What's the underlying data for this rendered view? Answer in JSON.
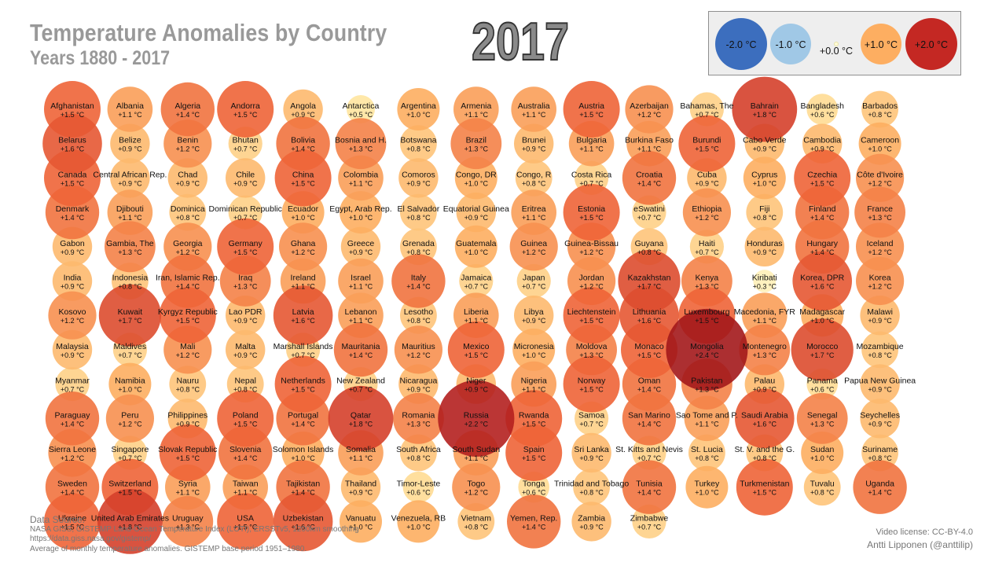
{
  "header": {
    "title": "Temperature Anomalies by Country",
    "subtitle": "Years 1880 - 2017",
    "year": "2017"
  },
  "legend": [
    {
      "label": "-2.0 °C",
      "value": -2.0
    },
    {
      "label": "-1.0 °C",
      "value": -1.0
    },
    {
      "label": "+0.0 °C",
      "value": 0.0
    },
    {
      "label": "+1.0 °C",
      "value": 1.0
    },
    {
      "label": "+2.0 °C",
      "value": 2.0
    }
  ],
  "footer": {
    "source_label": "Data Source:",
    "source_line1": "NASA GISS, GISTEMP Land-Ocean Temperature Index (LOTI), ERSSTv5, 1200km smoothing",
    "source_line2": "https://data.giss.nasa.gov/gistemp/",
    "source_line3": "Average of monthly temperature anomalies. GISTEMP base period 1951–1980.",
    "license": "Video license: CC-BY-4.0",
    "author": "Antti Lipponen (@anttilip)"
  },
  "chart_data": {
    "type": "bubble-grid",
    "unit": "°C",
    "columns": 15,
    "countries": [
      {
        "name": "Afghanistan",
        "value": 1.5
      },
      {
        "name": "Albania",
        "value": 1.1
      },
      {
        "name": "Algeria",
        "value": 1.4
      },
      {
        "name": "Andorra",
        "value": 1.5
      },
      {
        "name": "Angola",
        "value": 0.9
      },
      {
        "name": "Antarctica",
        "value": 0.5
      },
      {
        "name": "Argentina",
        "value": 1.0
      },
      {
        "name": "Armenia",
        "value": 1.1
      },
      {
        "name": "Australia",
        "value": 1.1
      },
      {
        "name": "Austria",
        "value": 1.5
      },
      {
        "name": "Azerbaijan",
        "value": 1.2
      },
      {
        "name": "Bahamas, The",
        "value": 0.7
      },
      {
        "name": "Bahrain",
        "value": 1.8
      },
      {
        "name": "Bangladesh",
        "value": 0.6
      },
      {
        "name": "Barbados",
        "value": 0.8
      },
      {
        "name": "Belarus",
        "value": 1.6
      },
      {
        "name": "Belize",
        "value": 0.9
      },
      {
        "name": "Benin",
        "value": 1.2
      },
      {
        "name": "Bhutan",
        "value": 0.7
      },
      {
        "name": "Bolivia",
        "value": 1.4
      },
      {
        "name": "Bosnia and H.",
        "value": 1.3
      },
      {
        "name": "Botswana",
        "value": 0.8
      },
      {
        "name": "Brazil",
        "value": 1.3
      },
      {
        "name": "Brunei",
        "value": 0.9
      },
      {
        "name": "Bulgaria",
        "value": 1.1
      },
      {
        "name": "Burkina Faso",
        "value": 1.1
      },
      {
        "name": "Burundi",
        "value": 1.5
      },
      {
        "name": "Cabo Verde",
        "value": 0.9
      },
      {
        "name": "Cambodia",
        "value": 0.9
      },
      {
        "name": "Cameroon",
        "value": 1.0
      },
      {
        "name": "Canada",
        "value": 1.5
      },
      {
        "name": "Central African Rep.",
        "value": 0.9
      },
      {
        "name": "Chad",
        "value": 0.9
      },
      {
        "name": "Chile",
        "value": 0.9
      },
      {
        "name": "China",
        "value": 1.5
      },
      {
        "name": "Colombia",
        "value": 1.1
      },
      {
        "name": "Comoros",
        "value": 0.9
      },
      {
        "name": "Congo, DR",
        "value": 1.0
      },
      {
        "name": "Congo, R",
        "value": 0.8
      },
      {
        "name": "Costa Rica",
        "value": 0.7
      },
      {
        "name": "Croatia",
        "value": 1.4
      },
      {
        "name": "Cuba",
        "value": 0.9
      },
      {
        "name": "Cyprus",
        "value": 1.0
      },
      {
        "name": "Czechia",
        "value": 1.5
      },
      {
        "name": "Côte d'Ivoire",
        "value": 1.2
      },
      {
        "name": "Denmark",
        "value": 1.4
      },
      {
        "name": "Djibouti",
        "value": 1.1
      },
      {
        "name": "Dominica",
        "value": 0.8
      },
      {
        "name": "Dominican Republic",
        "value": 0.7
      },
      {
        "name": "Ecuador",
        "value": 1.0
      },
      {
        "name": "Egypt, Arab Rep.",
        "value": 1.0
      },
      {
        "name": "El Salvador",
        "value": 0.8
      },
      {
        "name": "Equatorial Guinea",
        "value": 0.9
      },
      {
        "name": "Eritrea",
        "value": 1.1
      },
      {
        "name": "Estonia",
        "value": 1.5
      },
      {
        "name": "eSwatini",
        "value": 0.7
      },
      {
        "name": "Ethiopia",
        "value": 1.2
      },
      {
        "name": "Fiji",
        "value": 0.8
      },
      {
        "name": "Finland",
        "value": 1.4
      },
      {
        "name": "France",
        "value": 1.3
      },
      {
        "name": "Gabon",
        "value": 0.9
      },
      {
        "name": "Gambia, The",
        "value": 1.3
      },
      {
        "name": "Georgia",
        "value": 1.2
      },
      {
        "name": "Germany",
        "value": 1.5
      },
      {
        "name": "Ghana",
        "value": 1.2
      },
      {
        "name": "Greece",
        "value": 0.9
      },
      {
        "name": "Grenada",
        "value": 0.8
      },
      {
        "name": "Guatemala",
        "value": 1.0
      },
      {
        "name": "Guinea",
        "value": 1.2
      },
      {
        "name": "Guinea-Bissau",
        "value": 1.2
      },
      {
        "name": "Guyana",
        "value": 0.8
      },
      {
        "name": "Haiti",
        "value": 0.7
      },
      {
        "name": "Honduras",
        "value": 0.9
      },
      {
        "name": "Hungary",
        "value": 1.4
      },
      {
        "name": "Iceland",
        "value": 1.2
      },
      {
        "name": "India",
        "value": 0.9
      },
      {
        "name": "Indonesia",
        "value": 0.8
      },
      {
        "name": "Iran, Islamic Rep.",
        "value": 1.4
      },
      {
        "name": "Iraq",
        "value": 1.3
      },
      {
        "name": "Ireland",
        "value": 1.1
      },
      {
        "name": "Israel",
        "value": 1.1
      },
      {
        "name": "Italy",
        "value": 1.4
      },
      {
        "name": "Jamaica",
        "value": 0.7
      },
      {
        "name": "Japan",
        "value": 0.7
      },
      {
        "name": "Jordan",
        "value": 1.2
      },
      {
        "name": "Kazakhstan",
        "value": 1.7
      },
      {
        "name": "Kenya",
        "value": 1.3
      },
      {
        "name": "Kiribati",
        "value": 0.3
      },
      {
        "name": "Korea, DPR",
        "value": 1.6
      },
      {
        "name": "Korea",
        "value": 1.2
      },
      {
        "name": "Kosovo",
        "value": 1.2
      },
      {
        "name": "Kuwait",
        "value": 1.7
      },
      {
        "name": "Kyrgyz Republic",
        "value": 1.5
      },
      {
        "name": "Lao PDR",
        "value": 0.9
      },
      {
        "name": "Latvia",
        "value": 1.6
      },
      {
        "name": "Lebanon",
        "value": 1.1
      },
      {
        "name": "Lesotho",
        "value": 0.8
      },
      {
        "name": "Liberia",
        "value": 1.1
      },
      {
        "name": "Libya",
        "value": 0.9
      },
      {
        "name": "Liechtenstein",
        "value": 1.5
      },
      {
        "name": "Lithuania",
        "value": 1.6
      },
      {
        "name": "Luxembourg",
        "value": 1.5
      },
      {
        "name": "Macedonia, FYR",
        "value": 1.1
      },
      {
        "name": "Madagascar",
        "value": 1.0
      },
      {
        "name": "Malawi",
        "value": 0.9
      },
      {
        "name": "Malaysia",
        "value": 0.9
      },
      {
        "name": "Maldives",
        "value": 0.7
      },
      {
        "name": "Mali",
        "value": 1.2
      },
      {
        "name": "Malta",
        "value": 0.9
      },
      {
        "name": "Marshall Islands",
        "value": 0.7
      },
      {
        "name": "Mauritania",
        "value": 1.4
      },
      {
        "name": "Mauritius",
        "value": 1.2
      },
      {
        "name": "Mexico",
        "value": 1.5
      },
      {
        "name": "Micronesia",
        "value": 1.0
      },
      {
        "name": "Moldova",
        "value": 1.3
      },
      {
        "name": "Monaco",
        "value": 1.5
      },
      {
        "name": "Mongolia",
        "value": 2.4
      },
      {
        "name": "Montenegro",
        "value": 1.3
      },
      {
        "name": "Morocco",
        "value": 1.7
      },
      {
        "name": "Mozambique",
        "value": 0.8
      },
      {
        "name": "Myanmar",
        "value": 0.7
      },
      {
        "name": "Namibia",
        "value": 1.0
      },
      {
        "name": "Nauru",
        "value": 0.8
      },
      {
        "name": "Nepal",
        "value": 0.8
      },
      {
        "name": "Netherlands",
        "value": 1.5
      },
      {
        "name": "New Zealand",
        "value": 0.7
      },
      {
        "name": "Nicaragua",
        "value": 0.9
      },
      {
        "name": "Niger",
        "value": 0.9
      },
      {
        "name": "Nigeria",
        "value": 1.1
      },
      {
        "name": "Norway",
        "value": 1.5
      },
      {
        "name": "Oman",
        "value": 1.4
      },
      {
        "name": "Pakistan",
        "value": 1.3
      },
      {
        "name": "Palau",
        "value": 0.9
      },
      {
        "name": "Panama",
        "value": 0.6
      },
      {
        "name": "Papua New Guinea",
        "value": 0.9
      },
      {
        "name": "Paraguay",
        "value": 1.4
      },
      {
        "name": "Peru",
        "value": 1.2
      },
      {
        "name": "Philippines",
        "value": 0.9
      },
      {
        "name": "Poland",
        "value": 1.5
      },
      {
        "name": "Portugal",
        "value": 1.4
      },
      {
        "name": "Qatar",
        "value": 1.8
      },
      {
        "name": "Romania",
        "value": 1.3
      },
      {
        "name": "Russia",
        "value": 2.2
      },
      {
        "name": "Rwanda",
        "value": 1.5
      },
      {
        "name": "Samoa",
        "value": 0.7
      },
      {
        "name": "San Marino",
        "value": 1.4
      },
      {
        "name": "Sao Tome and P.",
        "value": 1.1
      },
      {
        "name": "Saudi Arabia",
        "value": 1.6
      },
      {
        "name": "Senegal",
        "value": 1.3
      },
      {
        "name": "Seychelles",
        "value": 0.9
      },
      {
        "name": "Sierra Leone",
        "value": 1.2
      },
      {
        "name": "Singapore",
        "value": 0.7
      },
      {
        "name": "Slovak Republic",
        "value": 1.5
      },
      {
        "name": "Slovenia",
        "value": 1.4
      },
      {
        "name": "Solomon Islands",
        "value": 1.0
      },
      {
        "name": "Somalia",
        "value": 1.1
      },
      {
        "name": "South Africa",
        "value": 0.8
      },
      {
        "name": "South Sudan",
        "value": 1.1
      },
      {
        "name": "Spain",
        "value": 1.5
      },
      {
        "name": "Sri Lanka",
        "value": 0.9
      },
      {
        "name": "St. Kitts and Nevis",
        "value": 0.7
      },
      {
        "name": "St. Lucia",
        "value": 0.8
      },
      {
        "name": "St. V. and the G.",
        "value": 0.8
      },
      {
        "name": "Sudan",
        "value": 1.0
      },
      {
        "name": "Suriname",
        "value": 0.8
      },
      {
        "name": "Sweden",
        "value": 1.4
      },
      {
        "name": "Switzerland",
        "value": 1.5
      },
      {
        "name": "Syria",
        "value": 1.1
      },
      {
        "name": "Taiwan",
        "value": 1.1
      },
      {
        "name": "Tajikistan",
        "value": 1.4
      },
      {
        "name": "Thailand",
        "value": 0.9
      },
      {
        "name": "Timor-Leste",
        "value": 0.6
      },
      {
        "name": "Togo",
        "value": 1.2
      },
      {
        "name": "Tonga",
        "value": 0.6
      },
      {
        "name": "Trinidad and Tobago",
        "value": 0.8
      },
      {
        "name": "Tunisia",
        "value": 1.4
      },
      {
        "name": "Turkey",
        "value": 1.0
      },
      {
        "name": "Turkmenistan",
        "value": 1.5
      },
      {
        "name": "Tuvalu",
        "value": 0.8
      },
      {
        "name": "Uganda",
        "value": 1.4
      },
      {
        "name": "Ukraine",
        "value": 1.5
      },
      {
        "name": "United Arab Emirates",
        "value": 1.8
      },
      {
        "name": "Uruguay",
        "value": 1.3
      },
      {
        "name": "USA",
        "value": 1.5
      },
      {
        "name": "Uzbekistan",
        "value": 1.6
      },
      {
        "name": "Vanuatu",
        "value": 1.0
      },
      {
        "name": "Venezuela, RB",
        "value": 1.0
      },
      {
        "name": "Vietnam",
        "value": 0.8
      },
      {
        "name": "Yemen, Rep.",
        "value": 1.4
      },
      {
        "name": "Zambia",
        "value": 0.9
      },
      {
        "name": "Zimbabwe",
        "value": 0.7
      }
    ]
  }
}
